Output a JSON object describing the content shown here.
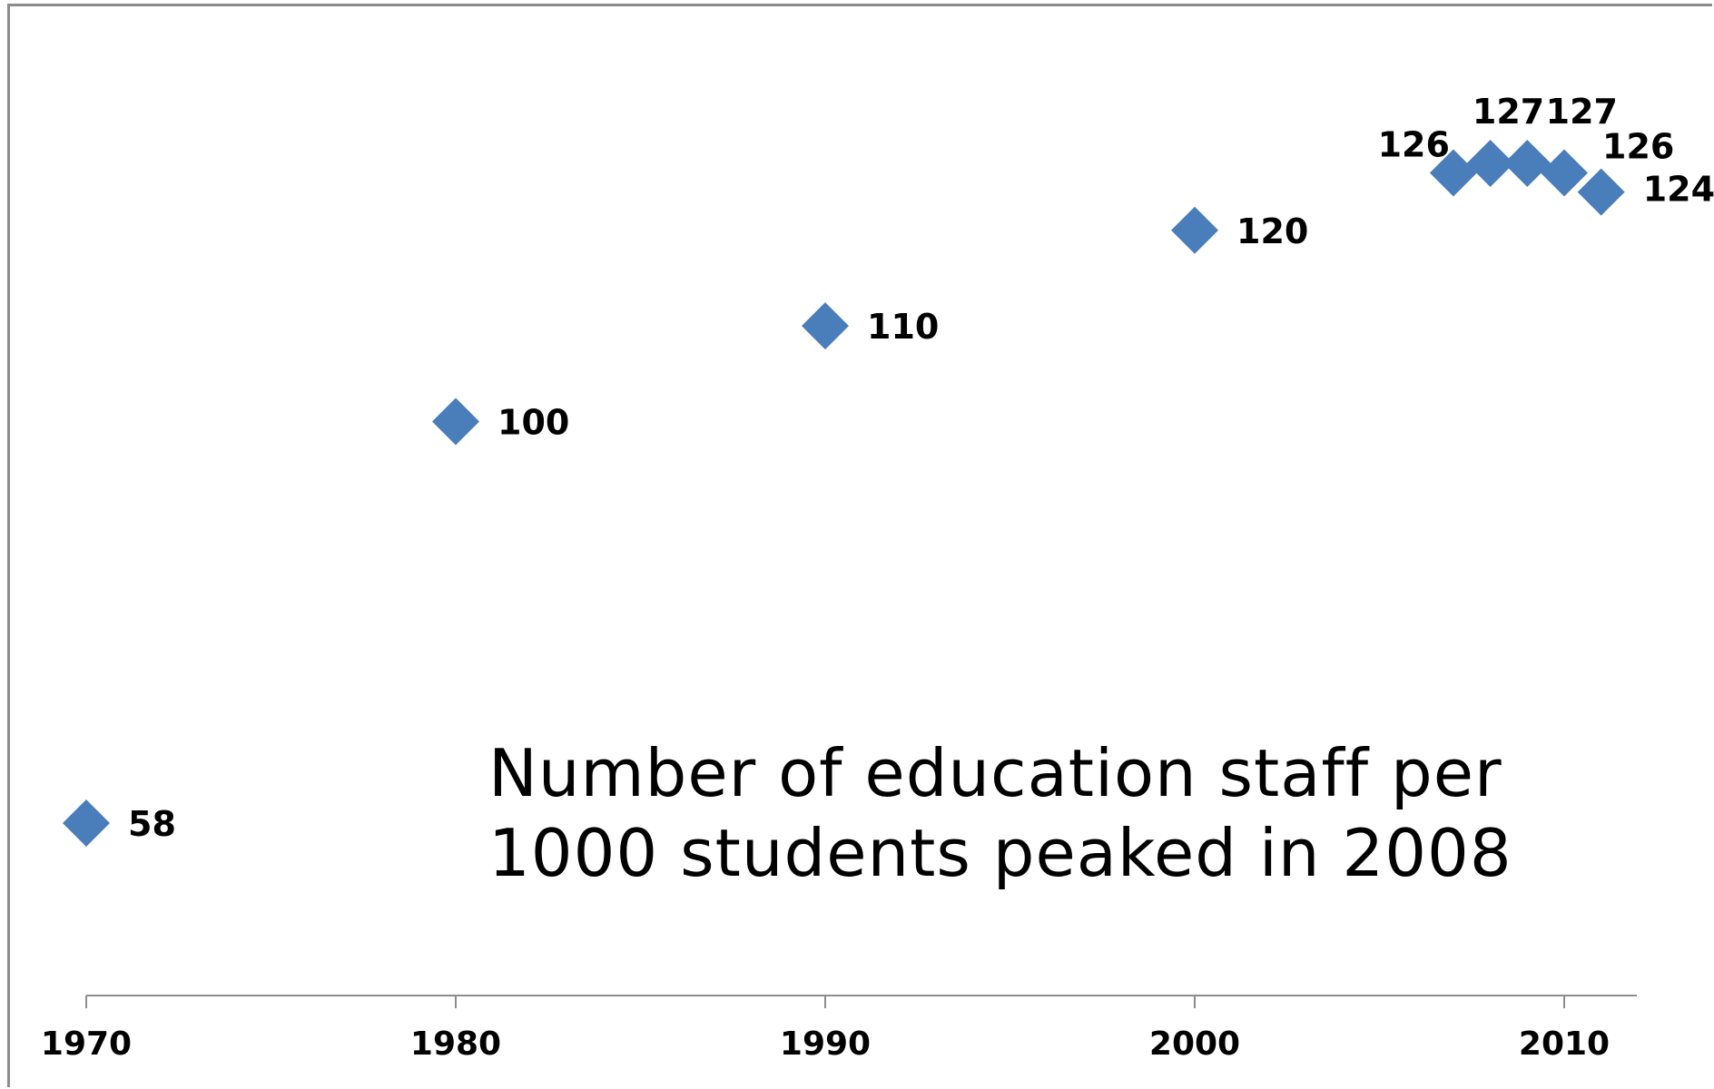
{
  "chart_data": {
    "type": "scatter",
    "title": "",
    "xlabel": "",
    "ylabel": "",
    "xlim": [
      1968,
      2012
    ],
    "ylim": [
      40,
      135
    ],
    "x_ticks": [
      1970,
      1980,
      1990,
      2000,
      2010
    ],
    "x_tick_labels": [
      "1970",
      "1980",
      "1990",
      "2000",
      "2010"
    ],
    "grid": false,
    "legend": "none",
    "marker": "diamond",
    "marker_color": "#4a7ebb",
    "series": [
      {
        "x": [
          1970,
          1980,
          1990,
          2000,
          2007,
          2008,
          2009,
          2010,
          2011
        ],
        "y": [
          58,
          100,
          110,
          120,
          126,
          127,
          127,
          126,
          124
        ],
        "labels": [
          "58",
          "100",
          "110",
          "120",
          "126",
          "127",
          "127",
          "126",
          "124"
        ]
      }
    ],
    "annotation": {
      "lines": [
        "Number of education staff per",
        "1000 students peaked in 2008"
      ]
    }
  }
}
